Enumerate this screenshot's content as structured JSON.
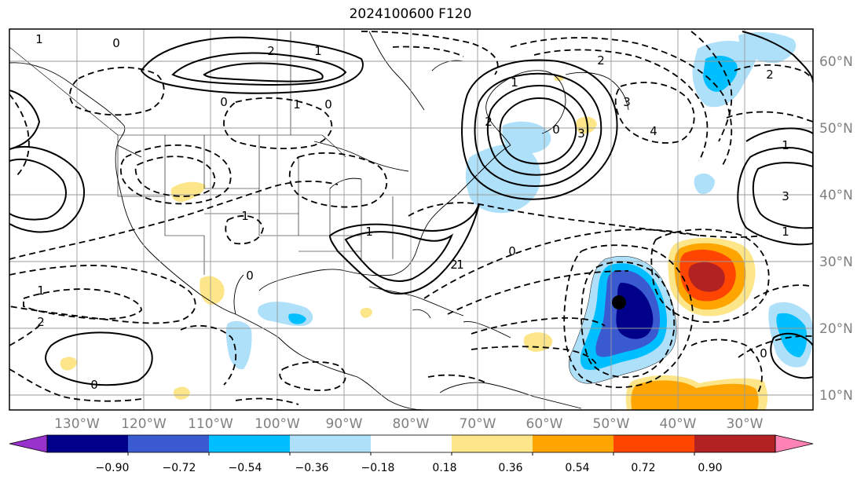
{
  "title": "2024100600 F120",
  "map": {
    "lon_labels": [
      "130°W",
      "120°W",
      "110°W",
      "100°W",
      "90°W",
      "80°W",
      "70°W",
      "60°W",
      "50°W",
      "40°W",
      "30°W"
    ],
    "lat_labels": [
      "60°N",
      "50°N",
      "40°N",
      "30°N",
      "20°N",
      "10°N"
    ],
    "contour_labels": [
      "1",
      "0",
      "2",
      "1",
      "0",
      "1",
      "0",
      "3",
      "2",
      "1",
      "0",
      "4",
      "3",
      "2",
      "1",
      "0",
      "1",
      "2",
      "1",
      "0",
      "1",
      "2",
      "0",
      "3",
      "1",
      "0",
      "2",
      "1"
    ]
  },
  "colorbar": {
    "ticks": [
      "−0.90",
      "−0.72",
      "−0.54",
      "−0.36",
      "−0.18",
      "0.18",
      "0.36",
      "0.54",
      "0.72",
      "0.90"
    ],
    "colors": [
      "#9932cc",
      "#00008b",
      "#3a5bd0",
      "#00bfff",
      "#aee0fa",
      "#ffffff",
      "#fde68a",
      "#ffa500",
      "#ff4500",
      "#b22222",
      "#ff82b4"
    ]
  },
  "colors": {
    "frame": "#000000",
    "grid": "#9a9a9a",
    "axis_text": "#808080"
  }
}
